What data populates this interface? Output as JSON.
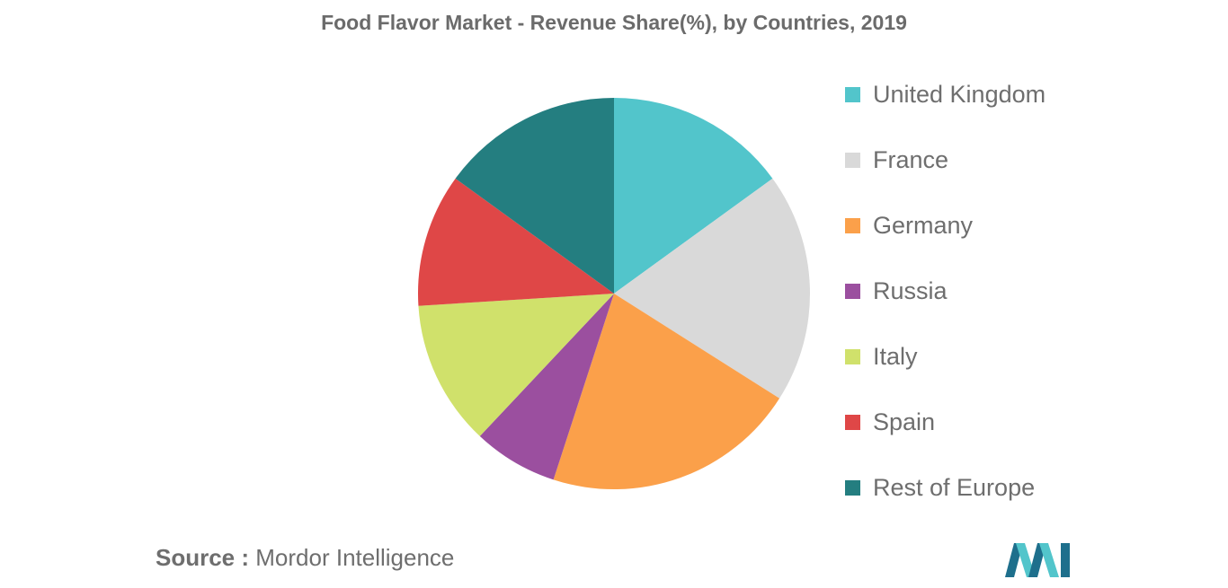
{
  "chart_data": {
    "type": "pie",
    "title": "Food Flavor Market - Revenue Share(%), by Countries, 2019",
    "start_angle_deg": 0,
    "direction": "clockwise",
    "slices": [
      {
        "label": "United Kingdom",
        "value": 15,
        "color": "#52c5cb"
      },
      {
        "label": "France",
        "value": 19,
        "color": "#d9d9d9"
      },
      {
        "label": "Germany",
        "value": 21,
        "color": "#fba04a"
      },
      {
        "label": "Russia",
        "value": 7,
        "color": "#9b4f9f"
      },
      {
        "label": "Italy",
        "value": 12,
        "color": "#d0e16b"
      },
      {
        "label": "Spain",
        "value": 11,
        "color": "#df4747"
      },
      {
        "label": "Rest of Europe",
        "value": 15,
        "color": "#247e80"
      }
    ],
    "legend_position": "right"
  },
  "source": {
    "prefix": "Source :",
    "text": "Mordor Intelligence"
  },
  "logo": {
    "icon": "mordor-intelligence-logo",
    "colors": [
      "#1e6f8c",
      "#52c5cb"
    ]
  }
}
